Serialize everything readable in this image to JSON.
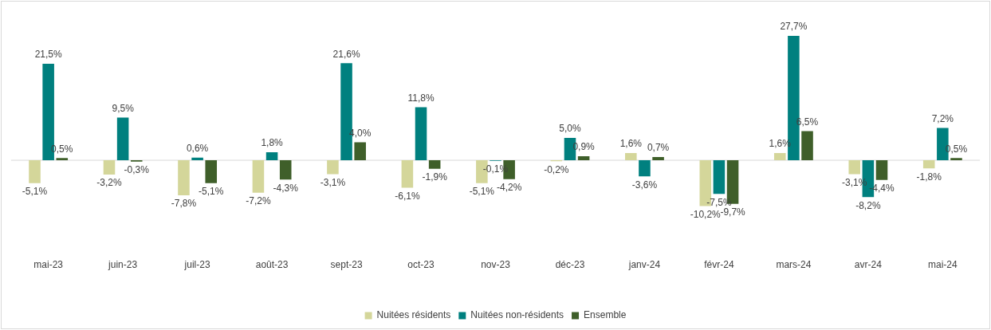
{
  "chart_data": {
    "type": "bar",
    "categories": [
      "mai-23",
      "juin-23",
      "juil-23",
      "août-23",
      "sept-23",
      "oct-23",
      "nov-23",
      "déc-23",
      "janv-24",
      "févr-24",
      "mars-24",
      "avr-24",
      "mai-24"
    ],
    "series": [
      {
        "name": "Nuitées résidents",
        "color": "#d4d69a",
        "values": [
          -5.1,
          -3.2,
          -7.8,
          -7.2,
          -3.1,
          -6.1,
          -5.1,
          -0.2,
          1.6,
          -10.2,
          1.6,
          -3.1,
          -1.8
        ],
        "value_labels": [
          "-5,1%",
          "-3,2%",
          "-7,8%",
          "-7,2%",
          "-3,1%",
          "-6,1%",
          "-5,1%",
          "-0,2%",
          "1,6%",
          "-10,2%",
          "1,6%",
          "-3,1%",
          "-1,8%"
        ]
      },
      {
        "name": "Nuitées non-résidents",
        "color": "#00807f",
        "values": [
          21.5,
          9.5,
          0.6,
          1.8,
          21.6,
          11.8,
          -0.1,
          5.0,
          -3.6,
          -7.5,
          27.7,
          -8.2,
          7.2
        ],
        "value_labels": [
          "21,5%",
          "9,5%",
          "0,6%",
          "1,8%",
          "21,6%",
          "11,8%",
          "-0,1%",
          "5,0%",
          "-3,6%",
          "-7,5%",
          "27,7%",
          "-8,2%",
          "7,2%"
        ]
      },
      {
        "name": "Ensemble",
        "color": "#3f5f2a",
        "values": [
          0.5,
          -0.3,
          -5.1,
          -4.3,
          4.0,
          -1.9,
          -4.2,
          0.9,
          0.7,
          -9.7,
          6.5,
          -4.4,
          0.5
        ],
        "value_labels": [
          "0,5%",
          "-0,3%",
          "-5,1%",
          "-4,3%",
          "4,0%",
          "-1,9%",
          "-4,2%",
          "0,9%",
          "0,7%",
          "-9,7%",
          "6,5%",
          "-4,4%",
          "0,5%"
        ]
      }
    ],
    "legend": "bottom",
    "tick_labels": "x",
    "grid": false
  }
}
